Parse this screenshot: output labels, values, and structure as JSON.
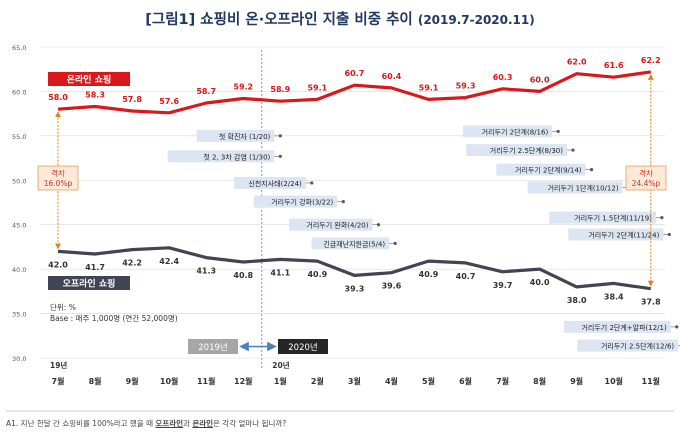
{
  "title": "[그림1] 쇼핑비 온·오프라인 지출 비중 추이",
  "title_period": "(2019.7-2020.11)",
  "footnote": {
    "prefix": "A1. 지난 한달 간 쇼핑비를 100%라고 했을 때 ",
    "offline": "오프라인",
    "mid": "과 ",
    "online": "온라인",
    "suffix": "은 각각 얼마나 됩니까?"
  },
  "colors": {
    "online": "#d9181b",
    "offline": "#3f4553",
    "gap": "#e0821e",
    "event_box": "#dce6f2",
    "era_2019": "#a6a6a6",
    "era_2020": "#262626",
    "arrow_blue": "#4a7fc1"
  },
  "unit_note": {
    "line1": "단위: %",
    "line2": "Base : 매주 1,000명 (연간 52,000명)"
  },
  "year_markers": {
    "y2019": "19년",
    "y2020": "20년"
  },
  "era_labels": {
    "left": "2019년",
    "right": "2020년"
  },
  "gap_labels": [
    {
      "label": "격차",
      "value": "16.0%p"
    },
    {
      "label": "격차",
      "value": "24.4%p"
    }
  ],
  "chart_data": {
    "type": "line",
    "categories": [
      "7월",
      "8월",
      "9월",
      "10월",
      "11월",
      "12월",
      "1월",
      "2월",
      "3월",
      "4월",
      "5월",
      "6월",
      "7월",
      "8월",
      "9월",
      "10월",
      "11월"
    ],
    "series": [
      {
        "name": "온라인 쇼핑",
        "values": [
          58.0,
          58.3,
          57.8,
          57.6,
          58.7,
          59.2,
          58.9,
          59.1,
          60.7,
          60.4,
          59.1,
          59.3,
          60.3,
          60.0,
          62.0,
          61.6,
          62.2
        ]
      },
      {
        "name": "오프라인 쇼핑",
        "values": [
          42.0,
          41.7,
          42.2,
          42.4,
          41.3,
          40.8,
          41.1,
          40.9,
          39.3,
          39.6,
          40.9,
          40.7,
          39.7,
          40.0,
          38.0,
          38.4,
          37.8
        ]
      }
    ],
    "value_labels": {
      "online": [
        "58.0",
        "58.3",
        "57.8",
        "57.6",
        "58.7",
        "59.2",
        "58.9",
        "59.1",
        "60.7",
        "60.4",
        "59.1",
        "59.3",
        "60.3",
        "60.0",
        "62.0",
        "61.6",
        "62.2"
      ],
      "offline": [
        "42.0",
        "41.7",
        "42.2",
        "42.4",
        "41.3",
        "40.8",
        "41.1",
        "40.9",
        "39.3",
        "39.6",
        "40.9",
        "40.7",
        "39.7",
        "40.0",
        "38.0",
        "38.4",
        "37.8"
      ]
    },
    "yticks": [
      "30.0",
      "35.0",
      "40.0",
      "45.0",
      "50.0",
      "55.0",
      "60.0",
      "65.0"
    ],
    "ylim": [
      30,
      65
    ],
    "grid": true,
    "events": [
      {
        "text": "첫 확진자 (1/20)",
        "x": 6.0,
        "y": 55.0
      },
      {
        "text": "첫 2, 3차 감염 (1/30)",
        "x": 6.0,
        "y": 52.7
      },
      {
        "text": "신천지사태(2/24)",
        "x": 6.85,
        "y": 49.7
      },
      {
        "text": "거리두기 강화(3/22)",
        "x": 7.7,
        "y": 47.6
      },
      {
        "text": "거리두기 완화(4/20)",
        "x": 8.65,
        "y": 45.0
      },
      {
        "text": "긴급재난지원금(5/4)",
        "x": 9.1,
        "y": 42.9
      },
      {
        "text": "거리두기 2단계(8/16)",
        "x": 13.5,
        "y": 55.5
      },
      {
        "text": "거리두기 2.5단계(8/30)",
        "x": 13.9,
        "y": 53.4
      },
      {
        "text": "거리두기 2단계(9/14)",
        "x": 14.4,
        "y": 51.2
      },
      {
        "text": "거리두기 1단계(10/12)",
        "x": 15.4,
        "y": 49.2
      },
      {
        "text": "거리두기 1.5단계(11/19)",
        "x": 16.3,
        "y": 45.8
      },
      {
        "text": "거리두기 2단계(11/24)",
        "x": 16.5,
        "y": 43.9
      },
      {
        "text": "거리두기 2단계+알파(12/1)",
        "x": 16.7,
        "y": 33.5
      },
      {
        "text": "거리두기 2.5단계(12/6)",
        "x": 16.9,
        "y": 31.4
      }
    ]
  }
}
